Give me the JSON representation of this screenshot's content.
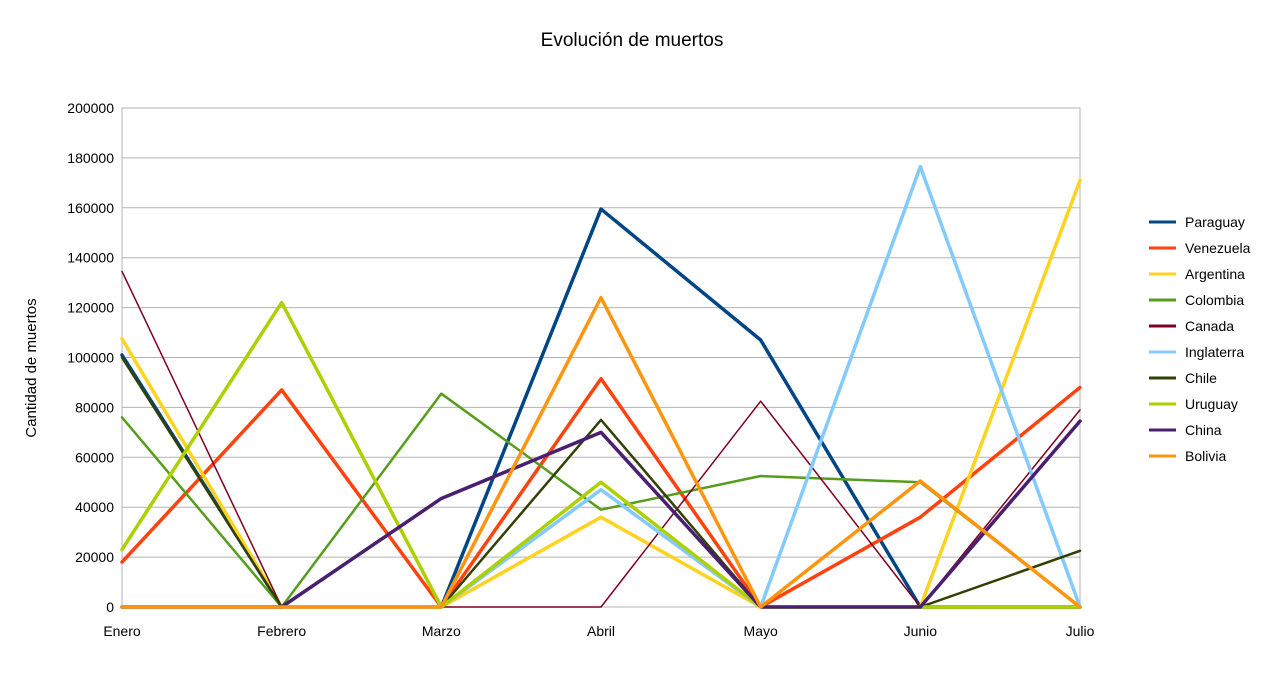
{
  "chart_data": {
    "type": "line",
    "title": "Evolución de muertos",
    "xlabel": "",
    "ylabel": "Cantidad de muertos",
    "ylim": [
      0,
      200000
    ],
    "yticks": [
      0,
      20000,
      40000,
      60000,
      80000,
      100000,
      120000,
      140000,
      160000,
      180000,
      200000
    ],
    "categories": [
      "Enero",
      "Febrero",
      "Marzo",
      "Abril",
      "Mayo",
      "Junio",
      "Julio"
    ],
    "grid": true,
    "legend_position": "right",
    "series": [
      {
        "name": "Paraguay",
        "color": "#004586",
        "values": [
          101000,
          0,
          0,
          159500,
          107000,
          0,
          0
        ]
      },
      {
        "name": "Venezuela",
        "color": "#ff420e",
        "values": [
          18000,
          87000,
          0,
          91500,
          0,
          36000,
          88000
        ]
      },
      {
        "name": "Argentina",
        "color": "#ffd320",
        "values": [
          107500,
          0,
          0,
          36000,
          0,
          0,
          171000
        ]
      },
      {
        "name": "Colombia",
        "color": "#579d1c",
        "values": [
          76000,
          0,
          85500,
          39000,
          52500,
          50000,
          0
        ]
      },
      {
        "name": "Canada",
        "color": "#7e0021",
        "values": [
          134500,
          0,
          0,
          0,
          82500,
          0,
          79000
        ]
      },
      {
        "name": "Inglaterra",
        "color": "#83caff",
        "values": [
          0,
          0,
          0,
          47000,
          0,
          176500,
          0
        ]
      },
      {
        "name": "Chile",
        "color": "#314004",
        "values": [
          100000,
          0,
          0,
          75000,
          0,
          0,
          22500
        ]
      },
      {
        "name": "Uruguay",
        "color": "#aecf00",
        "values": [
          23000,
          122000,
          0,
          50000,
          0,
          0,
          0
        ]
      },
      {
        "name": "China",
        "color": "#4b1f6f",
        "values": [
          0,
          0,
          43500,
          70000,
          0,
          0,
          74500
        ]
      },
      {
        "name": "Bolivia",
        "color": "#ff950e",
        "values": [
          0,
          0,
          0,
          124000,
          0,
          50500,
          0
        ]
      }
    ]
  }
}
